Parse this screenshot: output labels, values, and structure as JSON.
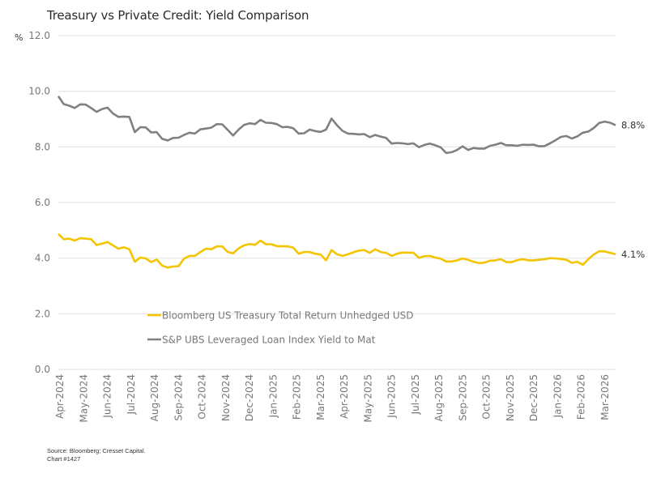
{
  "title": "Treasury vs Private Credit: Yield Comparison",
  "unit_label": "%",
  "source_line1": "Source: Bloomberg; Cresset Capital.",
  "source_line2": "Chart #1427",
  "colors": {
    "treasury": "#F5C400",
    "loan": "#808080",
    "grid": "#e6e6e6",
    "axis_text": "#777777"
  },
  "chart_data": {
    "type": "line",
    "title": "Treasury vs Private Credit: Yield Comparison",
    "xlabel": "",
    "ylabel": "%",
    "ylim": [
      0,
      12
    ],
    "yticks": [
      "0.0",
      "2.0",
      "4.0",
      "6.0",
      "8.0",
      "10.0",
      "12.0"
    ],
    "grid": true,
    "legend_position": "inside-lower-left",
    "x_tick_labels": [
      "Apr-2024",
      "May-2024",
      "Jun-2024",
      "Jul-2024",
      "Aug-2024",
      "Sep-2024",
      "Oct-2024",
      "Nov-2024",
      "Dec-2024",
      "Jan-2025",
      "Feb-2025",
      "Mar-2025",
      "Apr-2025",
      "May-2025",
      "Jun-2025",
      "Jul-2025",
      "Aug-2025",
      "Sep-2025",
      "Oct-2025",
      "Nov-2025",
      "Dec-2025",
      "Jan-2026",
      "Feb-2026",
      "Mar-2026"
    ],
    "x_frequency": "weekly (approx.)",
    "series": [
      {
        "name": "Bloomberg US Treasury Total Return Unhedged USD",
        "color": "#F5C400",
        "end_label": "4.1%",
        "values": [
          4.87,
          4.68,
          4.7,
          4.63,
          4.72,
          4.7,
          4.68,
          4.47,
          4.52,
          4.58,
          4.46,
          4.34,
          4.39,
          4.32,
          3.87,
          4.02,
          3.99,
          3.86,
          3.95,
          3.73,
          3.66,
          3.7,
          3.71,
          3.98,
          4.08,
          4.08,
          4.22,
          4.34,
          4.32,
          4.42,
          4.42,
          4.22,
          4.17,
          4.35,
          4.46,
          4.51,
          4.48,
          4.63,
          4.5,
          4.5,
          4.43,
          4.43,
          4.42,
          4.38,
          4.16,
          4.22,
          4.22,
          4.16,
          4.13,
          3.92,
          4.29,
          4.14,
          4.08,
          4.14,
          4.21,
          4.27,
          4.29,
          4.19,
          4.32,
          4.22,
          4.19,
          4.08,
          4.16,
          4.2,
          4.2,
          4.19,
          4.01,
          4.07,
          4.08,
          4.02,
          3.98,
          3.88,
          3.88,
          3.92,
          3.99,
          3.94,
          3.87,
          3.82,
          3.84,
          3.91,
          3.92,
          3.96,
          3.86,
          3.86,
          3.93,
          3.96,
          3.92,
          3.92,
          3.94,
          3.96,
          4.0,
          3.99,
          3.97,
          3.94,
          3.83,
          3.87,
          3.76,
          3.96,
          4.13,
          4.25,
          4.24,
          4.19,
          4.14
        ]
      },
      {
        "name": "S&P UBS Leveraged Loan Index Yield to Mat",
        "color": "#808080",
        "end_label": "8.8%",
        "values": [
          9.82,
          9.54,
          9.48,
          9.4,
          9.53,
          9.52,
          9.4,
          9.26,
          9.36,
          9.41,
          9.2,
          9.08,
          9.09,
          9.08,
          8.53,
          8.71,
          8.7,
          8.52,
          8.53,
          8.29,
          8.23,
          8.32,
          8.33,
          8.43,
          8.51,
          8.48,
          8.63,
          8.66,
          8.69,
          8.82,
          8.81,
          8.61,
          8.41,
          8.62,
          8.79,
          8.85,
          8.82,
          8.97,
          8.87,
          8.86,
          8.82,
          8.71,
          8.72,
          8.67,
          8.48,
          8.49,
          8.62,
          8.57,
          8.54,
          8.62,
          9.02,
          8.78,
          8.58,
          8.48,
          8.47,
          8.45,
          8.46,
          8.35,
          8.43,
          8.37,
          8.32,
          8.12,
          8.14,
          8.13,
          8.1,
          8.13,
          7.99,
          8.07,
          8.12,
          8.06,
          7.98,
          7.78,
          7.81,
          7.89,
          8.02,
          7.89,
          7.96,
          7.94,
          7.94,
          8.04,
          8.08,
          8.14,
          8.06,
          8.06,
          8.04,
          8.08,
          8.07,
          8.08,
          8.02,
          8.03,
          8.13,
          8.24,
          8.36,
          8.39,
          8.3,
          8.38,
          8.51,
          8.55,
          8.68,
          8.86,
          8.91,
          8.87,
          8.78
        ]
      }
    ]
  }
}
